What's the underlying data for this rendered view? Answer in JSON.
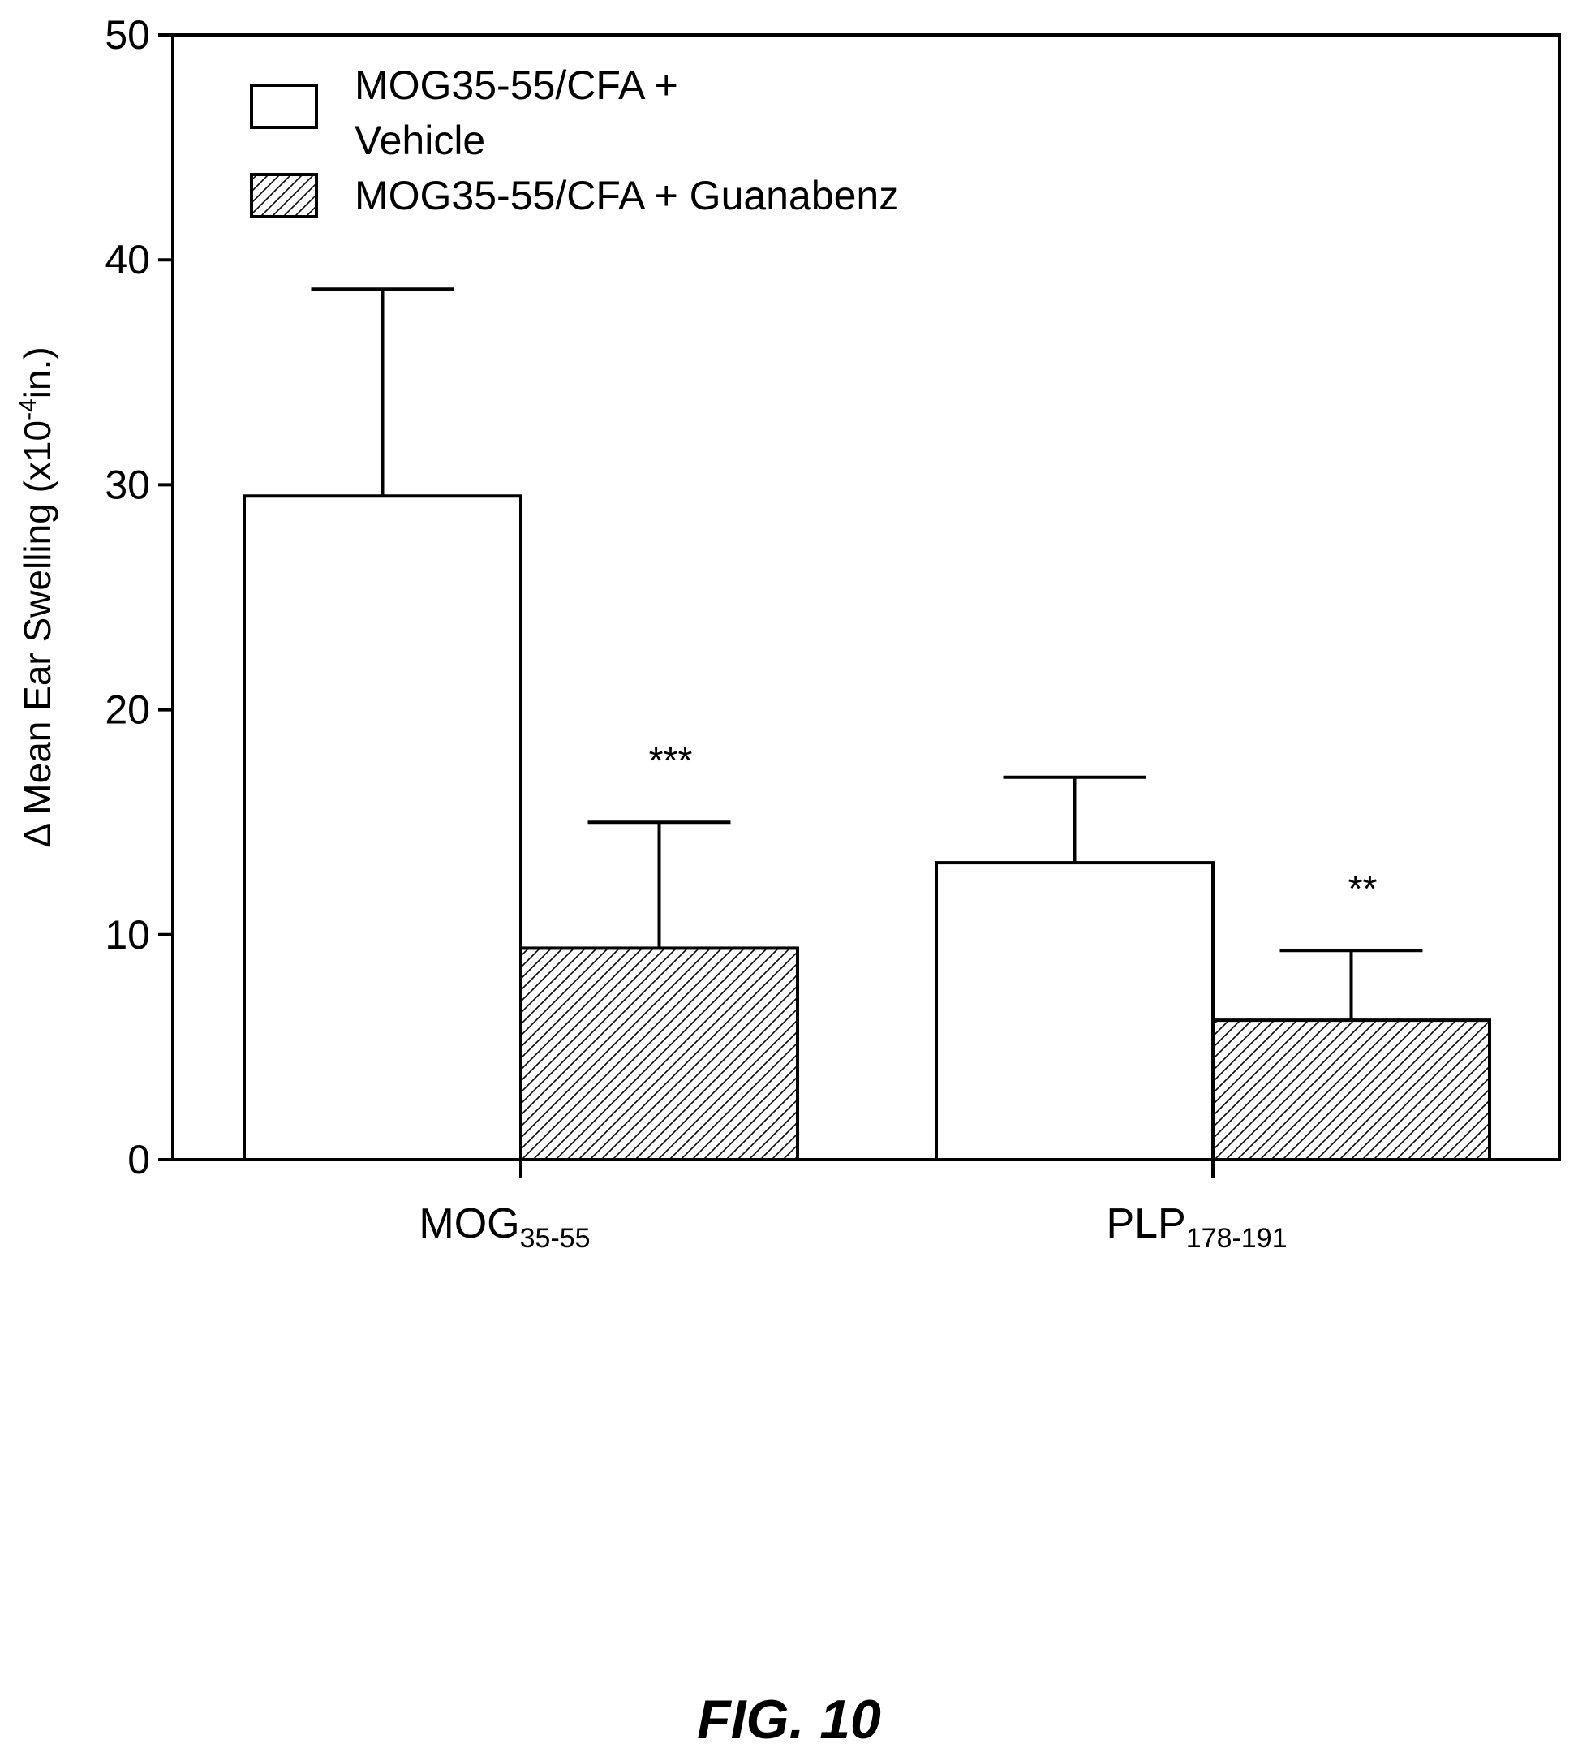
{
  "chart_data": {
    "type": "bar",
    "categories": [
      {
        "label": "MOG",
        "subscript": "35-55"
      },
      {
        "label": "PLP",
        "subscript": "178-191"
      }
    ],
    "series": [
      {
        "name": "MOG35-55/CFA + Vehicle",
        "name_lines": [
          "MOG35-55/CFA +",
          "Vehicle"
        ],
        "pattern": "none",
        "values": [
          29.5,
          13.2
        ],
        "errors": [
          9.2,
          3.8
        ],
        "annotations": [
          "",
          ""
        ]
      },
      {
        "name": "MOG35-55/CFA + Guanabenz",
        "name_lines": [
          "MOG35-55/CFA + Guanabenz"
        ],
        "pattern": "hatch",
        "values": [
          9.4,
          6.2
        ],
        "errors": [
          5.6,
          3.1
        ],
        "annotations": [
          "***",
          "**"
        ]
      }
    ],
    "ylabel": {
      "prefix": "Δ Mean Ear Swelling (x10",
      "exponent": "-4",
      "suffix": "in.)"
    },
    "xlabel": "",
    "ylim": [
      0,
      50
    ],
    "yticks": [
      0,
      10,
      20,
      30,
      40,
      50
    ],
    "grid": false,
    "legend_position": "top-left"
  },
  "figure_label": "FIG. 10"
}
